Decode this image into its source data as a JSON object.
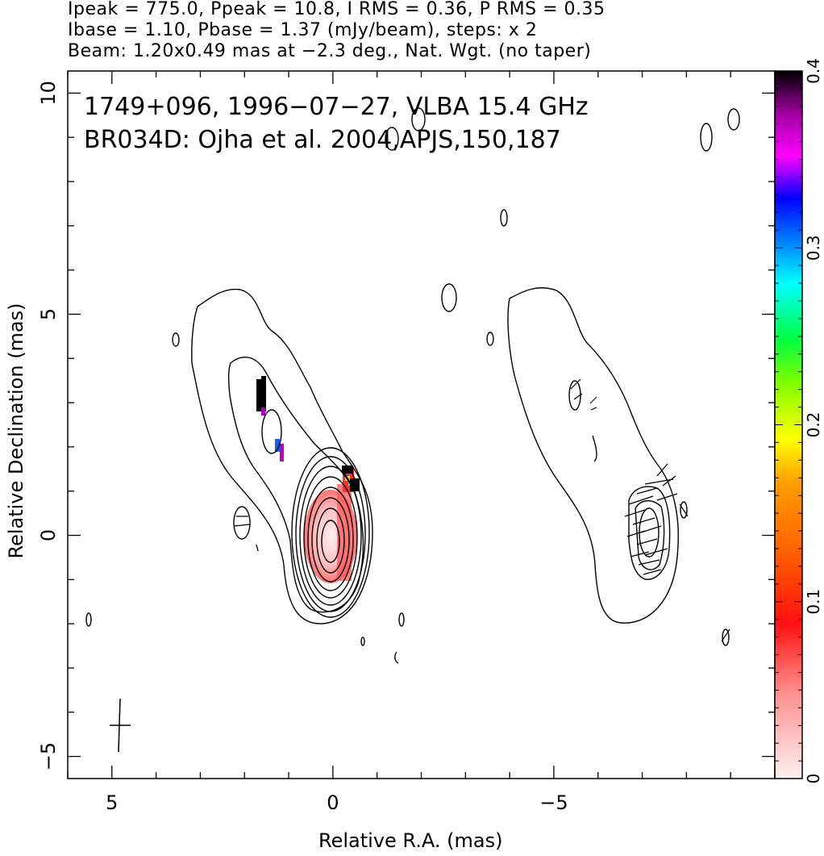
{
  "header": {
    "line1": "Ipeak = 775.0, Ppeak = 10.8, I RMS = 0.36, P RMS = 0.35",
    "line2": "Ibase = 1.10, Pbase = 1.37 (mJy/beam), steps: x 2",
    "line3": "Beam: 1.20x0.49 mas at −2.3 deg., Nat. Wgt. (no taper)"
  },
  "chart_data": {
    "type": "heatmap",
    "title_lines": [
      "1749+096, 1996−07−27, VLBA 15.4 GHz",
      "BR034D: Ojha et al. 2004,APJS,150,187"
    ],
    "xlabel": "Relative R.A. (mas)",
    "ylabel": "Relative Declination (mas)",
    "xlim": [
      6,
      -10
    ],
    "ylim": [
      -5.5,
      10.5
    ],
    "xticks": [
      5,
      0,
      -5
    ],
    "xtick_labels": [
      "5",
      "0",
      "−5"
    ],
    "yticks": [
      -5,
      0,
      5,
      10
    ],
    "ytick_labels": [
      "−5",
      "0",
      "5",
      "10"
    ],
    "colorbar": {
      "range": [
        0,
        0.4
      ],
      "ticks": [
        0,
        0.1,
        0.2,
        0.3,
        0.4
      ],
      "tick_labels": [
        "0",
        "0.1",
        "0.2",
        "0.3",
        "0.4"
      ]
    },
    "contour_levels": [
      "1.10",
      "2.20",
      "4.40",
      "8.80",
      "17.6",
      "35.2",
      "70.4",
      "140.8",
      "281.6",
      "563.2"
    ],
    "core": {
      "x": 0.0,
      "y": 0.0
    },
    "beam": {
      "major": 1.2,
      "minor": 0.49,
      "pa_deg": -2.3
    },
    "pol_vectors_text": "Right panel shows polarization vectors over total intensity"
  }
}
